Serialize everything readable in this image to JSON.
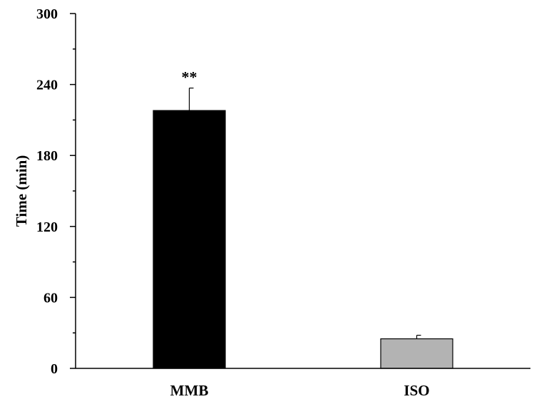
{
  "chart_data": {
    "type": "bar",
    "title": "",
    "xlabel": "",
    "ylabel": "Time (min)",
    "ylim": [
      0,
      300
    ],
    "yticks": [
      0,
      60,
      120,
      180,
      240,
      300
    ],
    "minor_ticks": true,
    "grid": false,
    "categories": [
      "MMB",
      "ISO"
    ],
    "values": [
      218,
      25
    ],
    "errors": [
      19,
      3
    ],
    "bar_colors": [
      "#000000",
      "#b3b3b3"
    ],
    "annotations": [
      "**",
      ""
    ]
  }
}
